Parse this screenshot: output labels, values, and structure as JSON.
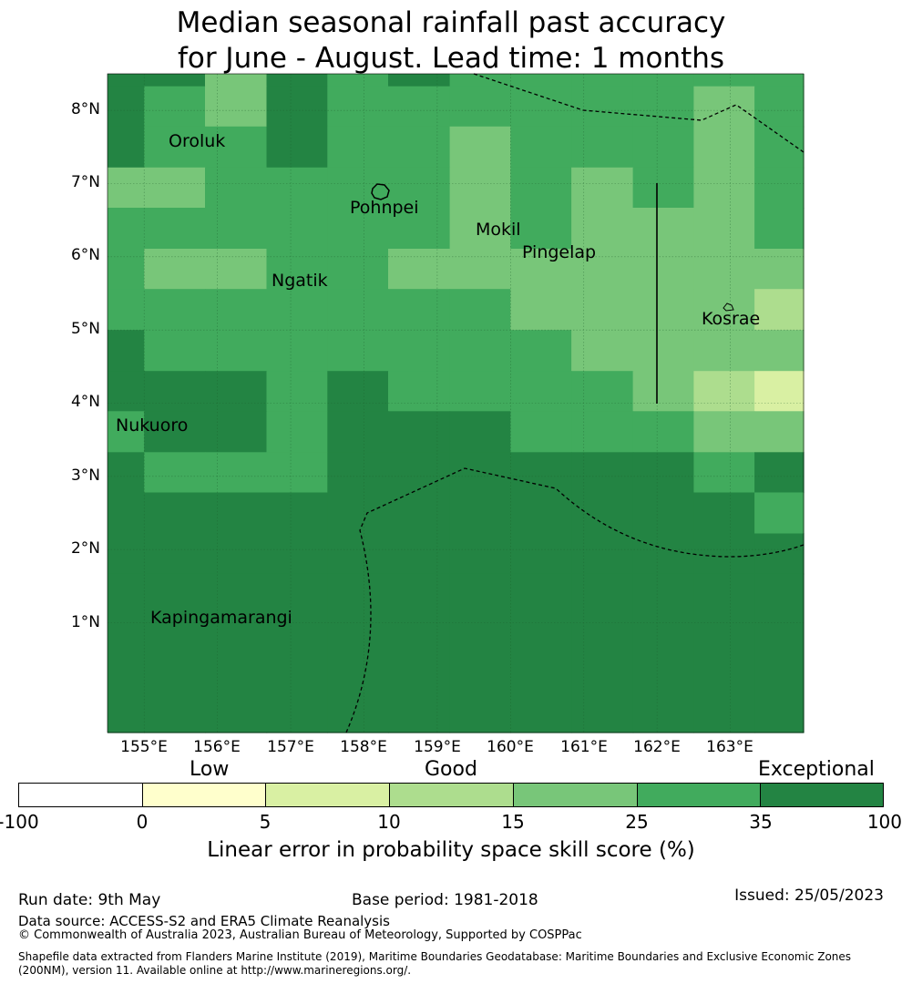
{
  "title": {
    "line1": "Median seasonal rainfall past accuracy",
    "line2": "for June - August. Lead time: 1 months"
  },
  "map": {
    "lat_ticks": [
      "8°N",
      "7°N",
      "6°N",
      "5°N",
      "4°N",
      "3°N",
      "2°N",
      "1°N"
    ],
    "lon_ticks": [
      "155°E",
      "156°E",
      "157°E",
      "158°E",
      "159°E",
      "160°E",
      "161°E",
      "162°E",
      "163°E"
    ],
    "extent": {
      "lon_min": 154.5,
      "lon_max": 164.0,
      "lat_min": -0.5,
      "lat_max": 8.5
    },
    "places": [
      "Oroluk",
      "Pohnpei",
      "Mokil",
      "Pingelap",
      "Ngatik",
      "Kosrae",
      "Nukuoro",
      "Kapingamarangi"
    ],
    "grid_columns_deg": [
      154.5,
      155.0,
      155.83,
      156.67,
      157.5,
      158.33,
      159.17,
      160.0,
      160.83,
      161.67,
      162.5,
      163.33,
      164.0
    ],
    "grid_rows_deg": [
      8.5,
      8.33,
      7.78,
      7.22,
      6.67,
      6.11,
      5.56,
      5.0,
      4.44,
      3.89,
      3.33,
      2.78,
      2.22,
      1.67,
      -0.5
    ],
    "skill_classes": [
      [
        35,
        35,
        15,
        35,
        25,
        35,
        25,
        25,
        25,
        25,
        25,
        25
      ],
      [
        35,
        25,
        15,
        35,
        25,
        25,
        25,
        25,
        25,
        25,
        15,
        25
      ],
      [
        35,
        25,
        25,
        35,
        25,
        25,
        15,
        25,
        25,
        25,
        15,
        25
      ],
      [
        15,
        15,
        25,
        25,
        25,
        25,
        15,
        25,
        15,
        25,
        15,
        25
      ],
      [
        25,
        25,
        25,
        25,
        25,
        25,
        15,
        25,
        15,
        15,
        15,
        25
      ],
      [
        25,
        15,
        15,
        25,
        25,
        15,
        15,
        15,
        15,
        15,
        15,
        15
      ],
      [
        25,
        25,
        25,
        25,
        25,
        25,
        25,
        15,
        15,
        15,
        15,
        10
      ],
      [
        35,
        25,
        25,
        25,
        25,
        25,
        25,
        25,
        15,
        15,
        15,
        15
      ],
      [
        35,
        35,
        35,
        25,
        35,
        25,
        25,
        25,
        25,
        15,
        10,
        5
      ],
      [
        25,
        35,
        35,
        25,
        35,
        35,
        35,
        25,
        25,
        25,
        15,
        15
      ],
      [
        35,
        25,
        25,
        25,
        35,
        35,
        35,
        35,
        35,
        35,
        25,
        35
      ],
      [
        35,
        35,
        35,
        35,
        35,
        35,
        35,
        35,
        35,
        35,
        35,
        25
      ],
      [
        35,
        35,
        35,
        35,
        35,
        35,
        35,
        35,
        35,
        35,
        35,
        35
      ],
      [
        35,
        35,
        35,
        35,
        35,
        35,
        35,
        35,
        35,
        35,
        35,
        35
      ]
    ],
    "class_colors": {
      "0": "#ffffcc",
      "5": "#d9f0a3",
      "10": "#addd8e",
      "15": "#78c679",
      "25": "#41ab5d",
      "35": "#238443"
    }
  },
  "colorbar": {
    "headings": {
      "low": "Low",
      "good": "Good",
      "exceptional": "Exceptional"
    },
    "ticks": [
      "-100",
      "0",
      "5",
      "10",
      "15",
      "25",
      "35",
      "100"
    ],
    "colors": [
      "#ffffff",
      "#ffffcc",
      "#d9f0a3",
      "#addd8e",
      "#78c679",
      "#41ab5d",
      "#238443"
    ],
    "label": "Linear error in probability space skill score (%)"
  },
  "footer": {
    "run_date": "Run date: 9th May",
    "base_period": "Base period: 1981-2018",
    "issued": "Issued: 25/05/2023",
    "data_source": "Data source: ACCESS-S2 and ERA5 Climate Reanalysis",
    "copyright": "© Commonwealth of Australia 2023, Australian Bureau of Meteorology, Supported by COSPPac",
    "shapefile_line1": "Shapefile data extracted from Flanders Marine Institute (2019), Maritime Boundaries Geodatabase: Maritime Boundaries and Exclusive Economic Zones",
    "shapefile_line2": "(200NM), version 11. Available online at http://www.marineregions.org/."
  }
}
